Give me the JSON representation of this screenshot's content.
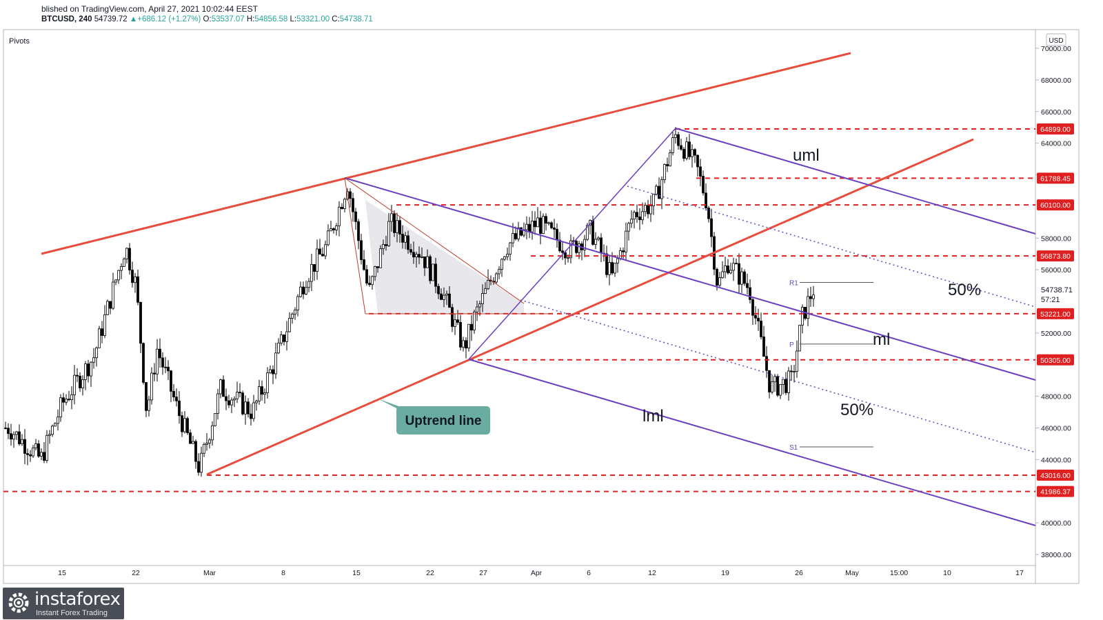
{
  "header": {
    "published": "blished on TradingView.com, April 27, 2021 10:02:44 EEST",
    "symbol": "BTCUSD, 240",
    "last": "54739.72",
    "change": "+686.12 (+1.27%)",
    "o_label": "O:",
    "o_value": "53537.07",
    "h_label": "H:",
    "h_value": "54856.58",
    "l_label": "L:",
    "l_value": "53321.00",
    "c_label": "C:",
    "c_value": "54738.71"
  },
  "indicator_label": "Pivots",
  "currency": "USD",
  "watermark": {
    "brand": "instaforex",
    "tagline": "Instant Forex Trading"
  },
  "colors": {
    "up_candle": "#ffffff",
    "down_candle": "#000000",
    "trend_line": "#e74c3c",
    "level_line": "#e02020",
    "pitchfork": "#6a3fc0",
    "callout": "#6aaca0",
    "price_badge": "#e02020"
  },
  "chart_data": {
    "type": "candlestick",
    "symbol": "BTCUSD",
    "timeframe": "240",
    "ylim": [
      37000,
      71000
    ],
    "y_ticks": [
      "70000.00",
      "68000.00",
      "66000.00",
      "64000.00",
      "62000.00",
      "58000.00",
      "56000.00",
      "52000.00",
      "48000.00",
      "46000.00",
      "44000.00",
      "40000.00",
      "38000.00"
    ],
    "x_ticks": [
      "15",
      "22",
      "Mar",
      "8",
      "15",
      "22",
      "27",
      "Apr",
      "6",
      "12",
      "19",
      "26",
      "May",
      "15:00",
      "10",
      "17"
    ],
    "current_price": "54738.71",
    "countdown": "57:21",
    "levels": [
      {
        "label": "64899.00",
        "value": 64899
      },
      {
        "label": "61788.45",
        "value": 61788.45
      },
      {
        "label": "60100.00",
        "value": 60100
      },
      {
        "label": "56873.80",
        "value": 56873.8
      },
      {
        "label": "53221.00",
        "value": 53221
      },
      {
        "label": "50305.00",
        "value": 50305
      },
      {
        "label": "43016.00",
        "value": 43016
      },
      {
        "label": "41986.37",
        "value": 41986.37
      }
    ],
    "pivots": [
      {
        "label": "R1",
        "value": 55200
      },
      {
        "label": "P",
        "value": 51300
      },
      {
        "label": "S1",
        "value": 44800
      }
    ],
    "annotations": [
      {
        "text": "uml"
      },
      {
        "text": "50%"
      },
      {
        "text": "ml"
      },
      {
        "text": "50%"
      },
      {
        "text": "lml"
      },
      {
        "text": "Uptrend line"
      }
    ],
    "price_path": [
      {
        "date": "Feb 10",
        "price": 46000
      },
      {
        "date": "Feb 13",
        "price": 44000
      },
      {
        "date": "Feb 15",
        "price": 47500
      },
      {
        "date": "Feb 18",
        "price": 50500
      },
      {
        "date": "Feb 21",
        "price": 57500
      },
      {
        "date": "Feb 22",
        "price": 55000
      },
      {
        "date": "Feb 23",
        "price": 47000
      },
      {
        "date": "Feb 24",
        "price": 51000
      },
      {
        "date": "Feb 26",
        "price": 47000
      },
      {
        "date": "Feb 28",
        "price": 43400
      },
      {
        "date": "Mar 2",
        "price": 48500
      },
      {
        "date": "Mar 5",
        "price": 47000
      },
      {
        "date": "Mar 7",
        "price": 50000
      },
      {
        "date": "Mar 10",
        "price": 55500
      },
      {
        "date": "Mar 12",
        "price": 57500
      },
      {
        "date": "Mar 14",
        "price": 61500
      },
      {
        "date": "Mar 16",
        "price": 54500
      },
      {
        "date": "Mar 18",
        "price": 59000
      },
      {
        "date": "Mar 21",
        "price": 57000
      },
      {
        "date": "Mar 23",
        "price": 54500
      },
      {
        "date": "Mar 25",
        "price": 51000
      },
      {
        "date": "Mar 26",
        "price": 53000
      },
      {
        "date": "Mar 29",
        "price": 57500
      },
      {
        "date": "Apr 1",
        "price": 59000
      },
      {
        "date": "Apr 4",
        "price": 57200
      },
      {
        "date": "Apr 6",
        "price": 58500
      },
      {
        "date": "Apr 8",
        "price": 55500
      },
      {
        "date": "Apr 10",
        "price": 59500
      },
      {
        "date": "Apr 12",
        "price": 60200
      },
      {
        "date": "Apr 14",
        "price": 64500
      },
      {
        "date": "Apr 16",
        "price": 62500
      },
      {
        "date": "Apr 17",
        "price": 60200
      },
      {
        "date": "Apr 18",
        "price": 55000
      },
      {
        "date": "Apr 19",
        "price": 56500
      },
      {
        "date": "Apr 21",
        "price": 54800
      },
      {
        "date": "Apr 23",
        "price": 48500
      },
      {
        "date": "Apr 25",
        "price": 49000
      },
      {
        "date": "Apr 26",
        "price": 53000
      },
      {
        "date": "Apr 27",
        "price": 54739
      }
    ]
  }
}
